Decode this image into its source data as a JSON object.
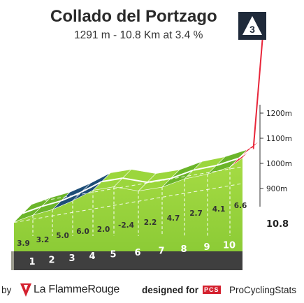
{
  "climb": {
    "name": "Collado del Portzago",
    "summary": "1291 m - 10.8 Km at 3.4 %",
    "category": "3"
  },
  "colors": {
    "green_light": "#9bd63c",
    "green_dark": "#6bb52a",
    "blue": "#1e4e78",
    "red": "#e8263a",
    "base_grey": "#9b9b8e",
    "base_dark": "#3f3f3f"
  },
  "footer": {
    "by": "by",
    "brand": "La FlammeRouge",
    "designed_for": "designed for",
    "pcs_logo": "PCS",
    "pcs_name": "ProCyclingStats"
  },
  "chart_data": {
    "type": "area",
    "title": "Collado del Portzago",
    "subtitle": "1291 m - 10.8 Km at 3.4 %",
    "x_unit": "km",
    "km_markers": [
      "1",
      "2",
      "3",
      "4",
      "5",
      "6",
      "7",
      "8",
      "9",
      "10"
    ],
    "final_distance_label": "10.8",
    "segment_gradients": [
      3.9,
      3.2,
      5.0,
      6.0,
      2.0,
      -2.4,
      2.2,
      4.7,
      2.7,
      4.1,
      6.6
    ],
    "segment_gradient_labels": [
      "3.9",
      "3.2",
      "5.0",
      "6.0",
      "2.0",
      "-2.4",
      "2.2",
      "4.7",
      "2.7",
      "4.1",
      "6.6"
    ],
    "altitude_ticks": [
      {
        "value": 1200,
        "label": "1200m"
      },
      {
        "value": 1100,
        "label": "1100m"
      },
      {
        "value": 1000,
        "label": "1000m"
      },
      {
        "value": 900,
        "label": "900m"
      }
    ]
  }
}
